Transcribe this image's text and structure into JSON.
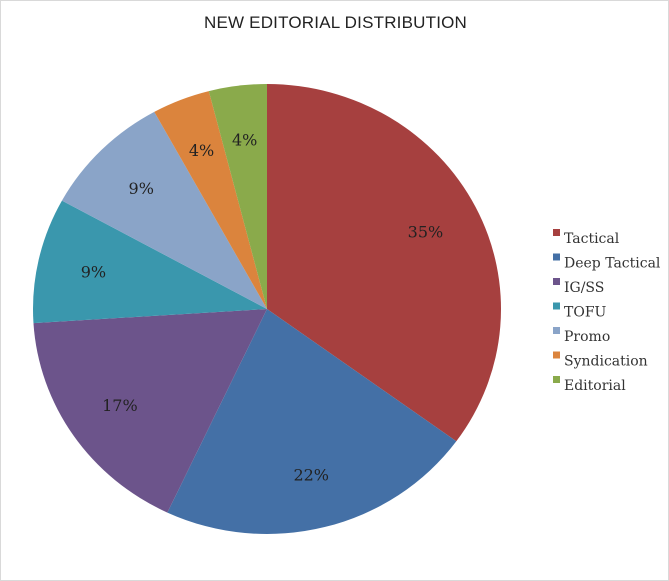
{
  "chart_data": {
    "type": "pie",
    "title": "NEW EDITORIAL DISTRIBUTION",
    "categories": [
      "Tactical",
      "Deep Tactical",
      "IG/SS",
      "TOFU",
      "Promo",
      "Syndication",
      "Editorial"
    ],
    "values": [
      35,
      22,
      17,
      9,
      9,
      4,
      4
    ],
    "data_labels": [
      "35%",
      "22%",
      "17%",
      "9%",
      "9%",
      "4%",
      "4%"
    ],
    "colors": [
      "#a6403f",
      "#4470a6",
      "#6c548b",
      "#3a97ad",
      "#8aa4c8",
      "#db843d",
      "#8aaa4b"
    ],
    "legend_position": "right",
    "start": "12 o'clock, clockwise"
  }
}
